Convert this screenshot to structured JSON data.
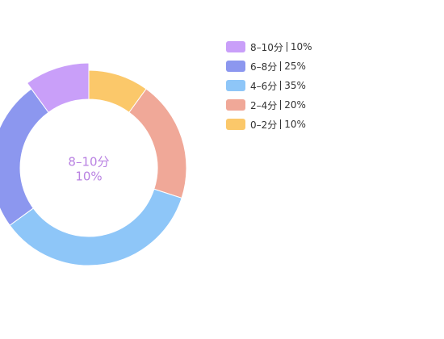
{
  "chart_data": {
    "type": "donut",
    "categories": [
      "8–10分",
      "6–8分",
      "4–6分",
      "2–4分",
      "0–2分"
    ],
    "values": [
      10,
      25,
      35,
      20,
      10
    ],
    "value_labels": [
      "10%",
      "25%",
      "35%",
      "20%",
      "10%"
    ],
    "colors": [
      "#c99ff9",
      "#8c97ef",
      "#8ec6f8",
      "#f0a898",
      "#fbc86a"
    ],
    "highlight": 0,
    "center_color": "#b982e2"
  }
}
